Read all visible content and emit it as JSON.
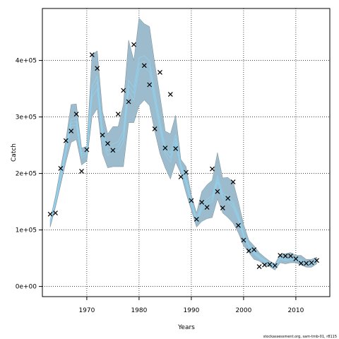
{
  "chart_data": {
    "type": "scatter",
    "xlabel": "Years",
    "ylabel": "Catch",
    "xlim": [
      1961.5,
      2016.5
    ],
    "ylim": [
      -18000,
      492000
    ],
    "x_ticks": [
      1970,
      1980,
      1990,
      2000,
      2010
    ],
    "x_tick_labels": [
      "1970",
      "1980",
      "1990",
      "2000",
      "2010"
    ],
    "y_ticks": [
      0,
      100000,
      200000,
      300000,
      400000
    ],
    "y_tick_labels": [
      "0e+00",
      "1e+05",
      "2e+05",
      "3e+05",
      "4e+05"
    ],
    "grid": true,
    "credit": "stockassessment.org, sam-tmb-01, r8115",
    "colors": {
      "band_fill": "#9cbbcc",
      "band_line": "#7a8f9b",
      "line": "#8ed6f5",
      "marker": "#000000",
      "grid": "#000000"
    },
    "observed": {
      "x": [
        1963,
        1964,
        1965,
        1966,
        1967,
        1968,
        1969,
        1970,
        1971,
        1972,
        1973,
        1974,
        1975,
        1976,
        1977,
        1978,
        1979,
        1981,
        1982,
        1983,
        1984,
        1985,
        1986,
        1987,
        1988,
        1989,
        1990,
        1991,
        1992,
        1993,
        1994,
        1995,
        1996,
        1997,
        1998,
        1999,
        2000,
        2001,
        2002,
        2003,
        2004,
        2005,
        2006,
        2007,
        2008,
        2009,
        2010,
        2011,
        2012,
        2013,
        2014
      ],
      "y": [
        128000,
        130000,
        209000,
        258000,
        275000,
        305000,
        204000,
        242000,
        410000,
        386000,
        268000,
        253000,
        241000,
        305000,
        347000,
        327000,
        428000,
        391000,
        357000,
        279000,
        379000,
        245000,
        340000,
        244000,
        194000,
        202000,
        152000,
        119000,
        149000,
        140000,
        208000,
        168000,
        139000,
        156000,
        185000,
        108000,
        82000,
        63000,
        65000,
        35000,
        38000,
        39000,
        37000,
        55000,
        54000,
        54000,
        49000,
        41000,
        41000,
        42000,
        46000
      ]
    },
    "band": {
      "x": [
        1963,
        1964,
        1965,
        1966,
        1967,
        1968,
        1969,
        1970,
        1971,
        1972,
        1973,
        1974,
        1975,
        1976,
        1977,
        1978,
        1979,
        1980,
        1981,
        1982,
        1983,
        1984,
        1985,
        1986,
        1987,
        1988,
        1989,
        1990,
        1991,
        1992,
        1993,
        1994,
        1995,
        1996,
        1997,
        1998,
        1999,
        2000,
        2001,
        2002,
        2003,
        2004,
        2005,
        2006,
        2007,
        2008,
        2009,
        2010,
        2011,
        2012,
        2013,
        2014
      ],
      "lower": [
        105000,
        140000,
        180000,
        220000,
        255000,
        260000,
        215000,
        222000,
        300000,
        315000,
        235000,
        210000,
        212000,
        212000,
        212000,
        290000,
        290000,
        320000,
        330000,
        320000,
        275000,
        235000,
        210000,
        190000,
        220000,
        200000,
        165000,
        135000,
        105000,
        115000,
        120000,
        122000,
        155000,
        130000,
        122000,
        112000,
        95000,
        72000,
        60000,
        48000,
        45000,
        38000,
        35000,
        29000,
        42000,
        40000,
        42000,
        42000,
        38000,
        34000,
        34000,
        40000
      ],
      "upper": [
        118000,
        160000,
        210000,
        260000,
        322000,
        323000,
        245000,
        248000,
        410000,
        417000,
        310000,
        270000,
        283000,
        283000,
        322000,
        436000,
        400000,
        475000,
        465000,
        460000,
        395000,
        338000,
        275000,
        270000,
        303000,
        225000,
        212000,
        162000,
        130000,
        168000,
        180000,
        188000,
        237000,
        192000,
        193000,
        185000,
        150000,
        110000,
        82000,
        72000,
        60000,
        52000,
        45000,
        40000,
        57000,
        58000,
        60000,
        55000,
        55000,
        48000,
        48000,
        52000
      ]
    },
    "lines": [
      [
        115000,
        150000,
        195000,
        240000,
        290000,
        292000,
        232000,
        236000,
        345000,
        362000,
        268000,
        240000,
        245000,
        248000,
        265000,
        355000,
        342000,
        395000,
        398000,
        390000,
        335000,
        285000,
        240000,
        228000,
        262000,
        212000,
        186000,
        148000,
        117000,
        140000,
        150000,
        155000,
        190000,
        160000,
        155000,
        145000,
        122000,
        90000,
        72000,
        60000,
        52000,
        45000,
        40000,
        34000,
        50000,
        48000,
        50000,
        48000,
        46000,
        40000,
        40000,
        46000
      ],
      [
        112000,
        147000,
        190000,
        235000,
        285000,
        285000,
        228000,
        232000,
        335000,
        350000,
        260000,
        232000,
        238000,
        240000,
        255000,
        345000,
        330000,
        385000,
        388000,
        380000,
        326000,
        277000,
        233000,
        220000,
        255000,
        208000,
        182000,
        145000,
        114000,
        136000,
        145000,
        150000,
        185000,
        155000,
        150000,
        140000,
        118000,
        87000,
        70000,
        58000,
        50000,
        43000,
        39000,
        33000,
        48000,
        46000,
        48000,
        46000,
        44000,
        38000,
        38000,
        44000
      ],
      [
        118000,
        153000,
        200000,
        245000,
        296000,
        298000,
        236000,
        240000,
        355000,
        372000,
        276000,
        248000,
        252000,
        256000,
        275000,
        365000,
        352000,
        405000,
        408000,
        400000,
        344000,
        293000,
        247000,
        236000,
        269000,
        216000,
        190000,
        151000,
        120000,
        144000,
        155000,
        160000,
        196000,
        165000,
        160000,
        150000,
        126000,
        93000,
        74000,
        62000,
        54000,
        47000,
        41000,
        35000,
        52000,
        50000,
        52000,
        50000,
        48000,
        42000,
        42000,
        48000
      ]
    ]
  }
}
